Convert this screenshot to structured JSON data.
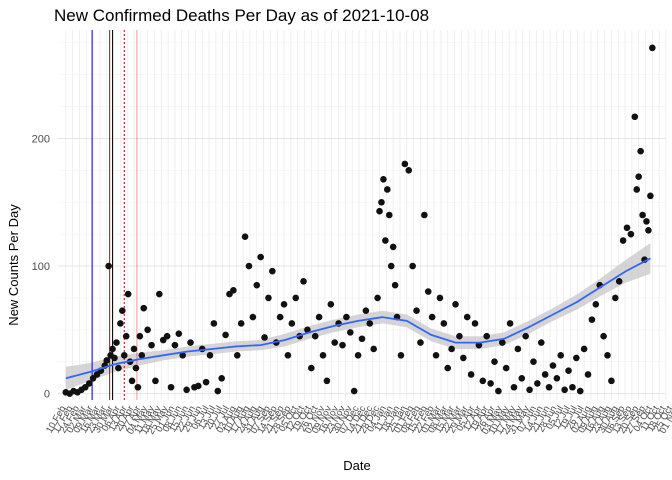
{
  "chart_data": {
    "type": "scatter",
    "title": "New Confirmed Deaths Per Day as of 2021-10-08",
    "xlabel": "Date",
    "ylabel": "New Counts Per Day",
    "ylim": [
      -5,
      285
    ],
    "xlim": [
      -8,
      615
    ],
    "y_ticks": [
      0,
      100,
      200
    ],
    "x_tick_labels": [
      "10 Feb",
      "17 Feb",
      "24 Feb",
      "02 Mar",
      "09 Mar",
      "16 Mar",
      "23 Mar",
      "30 Mar",
      "06 Apr",
      "13 Apr",
      "20 Apr",
      "27 Apr",
      "04 May",
      "11 May",
      "18 May",
      "25 May",
      "01 Jun",
      "08 Jun",
      "15 Jun",
      "22 Jun",
      "29 Jun",
      "06 Jul",
      "13 Jul",
      "20 Jul",
      "27 Jul",
      "03 Aug",
      "10 Aug",
      "17 Aug",
      "24 Aug",
      "31 Aug",
      "07 Sep",
      "14 Sep",
      "21 Sep",
      "28 Sep",
      "05 Oct",
      "12 Oct",
      "19 Oct",
      "26 Oct",
      "02 Nov",
      "09 Nov",
      "16 Nov",
      "23 Nov",
      "30 Nov",
      "07 Dec",
      "14 Dec",
      "21 Dec",
      "28 Dec",
      "04 Jan",
      "11 Jan",
      "18 Jan",
      "25 Jan",
      "01 Feb",
      "08 Feb",
      "15 Feb",
      "22 Feb",
      "01 Mar",
      "08 Mar",
      "15 Mar",
      "22 Mar",
      "29 Mar",
      "05 Apr",
      "12 Apr",
      "19 Apr",
      "26 Apr",
      "03 May",
      "10 May",
      "17 May",
      "24 May",
      "31 May",
      "07 Jun",
      "14 Jun",
      "21 Jun",
      "28 Jun",
      "05 Jul",
      "12 Jul",
      "19 Jul",
      "26 Jul",
      "02 Aug",
      "09 Aug",
      "16 Aug",
      "23 Aug",
      "30 Aug",
      "06 Sep",
      "13 Sep",
      "20 Sep",
      "27 Sep",
      "04 Oct",
      "11 Oct",
      "18 Oct",
      "25 Oct",
      "01 Nov"
    ],
    "vlines": [
      {
        "day": 27,
        "color": "#0000cc",
        "style": "solid"
      },
      {
        "day": 45,
        "color": "#cc0000",
        "style": "solid"
      },
      {
        "day": 48,
        "color": "#000000",
        "style": "solid"
      },
      {
        "day": 60,
        "color": "#cc0000",
        "style": "dotted"
      },
      {
        "day": 73,
        "color": "#cc0000",
        "style": "solid-light"
      }
    ],
    "trend_day": [
      0,
      25,
      50,
      75,
      100,
      125,
      150,
      175,
      200,
      225,
      250,
      275,
      300,
      325,
      350,
      375,
      400,
      425,
      450,
      475,
      500,
      525,
      550,
      575,
      600
    ],
    "trend_value": [
      12,
      17,
      23,
      27,
      30,
      33,
      35,
      37,
      38,
      42,
      48,
      53,
      57,
      60,
      57,
      46,
      40,
      40,
      43,
      52,
      62,
      72,
      84,
      96,
      106
    ],
    "trend_band": [
      9,
      7,
      6,
      5,
      4,
      4,
      4,
      4,
      4,
      5,
      5,
      5,
      5,
      5,
      5,
      5,
      5,
      5,
      5,
      5,
      5,
      6,
      7,
      9,
      12
    ],
    "days": [
      0,
      4,
      8,
      12,
      16,
      20,
      24,
      28,
      32,
      36,
      40,
      42,
      44,
      46,
      48,
      50,
      52,
      54,
      56,
      58,
      60,
      62,
      64,
      66,
      68,
      70,
      72,
      74,
      76,
      78,
      80,
      84,
      88,
      92,
      96,
      100,
      104,
      108,
      112,
      116,
      120,
      124,
      128,
      132,
      136,
      140,
      144,
      148,
      152,
      156,
      160,
      164,
      168,
      172,
      176,
      180,
      184,
      188,
      192,
      196,
      200,
      204,
      208,
      212,
      216,
      220,
      224,
      228,
      232,
      236,
      240,
      244,
      248,
      252,
      256,
      260,
      264,
      268,
      272,
      276,
      280,
      284,
      288,
      292,
      296,
      300,
      304,
      308,
      312,
      316,
      320,
      322,
      324,
      326,
      328,
      330,
      332,
      334,
      336,
      338,
      340,
      344,
      348,
      352,
      356,
      360,
      364,
      368,
      372,
      376,
      380,
      384,
      388,
      392,
      396,
      400,
      404,
      408,
      412,
      416,
      420,
      424,
      428,
      432,
      436,
      440,
      444,
      448,
      452,
      456,
      460,
      464,
      468,
      472,
      476,
      480,
      484,
      488,
      492,
      496,
      500,
      504,
      508,
      512,
      516,
      520,
      524,
      528,
      532,
      536,
      540,
      544,
      548,
      552,
      556,
      560,
      564,
      568,
      572,
      576,
      580,
      584,
      586,
      588,
      590,
      592,
      594,
      596,
      598,
      600,
      602
    ],
    "values": [
      1,
      0,
      2,
      1,
      3,
      5,
      8,
      12,
      15,
      18,
      22,
      26,
      100,
      30,
      35,
      28,
      40,
      20,
      55,
      65,
      30,
      45,
      78,
      25,
      10,
      35,
      20,
      5,
      45,
      30,
      67,
      50,
      38,
      10,
      78,
      42,
      45,
      5,
      38,
      47,
      30,
      3,
      40,
      5,
      6,
      35,
      9,
      30,
      55,
      2,
      12,
      46,
      78,
      81,
      30,
      55,
      123,
      100,
      60,
      85,
      107,
      44,
      75,
      96,
      40,
      60,
      70,
      30,
      55,
      75,
      45,
      88,
      50,
      20,
      45,
      60,
      30,
      10,
      70,
      40,
      55,
      38,
      60,
      48,
      2,
      30,
      43,
      65,
      55,
      35,
      75,
      143,
      150,
      168,
      120,
      160,
      140,
      100,
      115,
      85,
      60,
      30,
      180,
      175,
      100,
      65,
      40,
      140,
      80,
      60,
      30,
      75,
      55,
      20,
      35,
      70,
      45,
      28,
      60,
      15,
      55,
      38,
      10,
      45,
      8,
      25,
      2,
      40,
      20,
      55,
      5,
      35,
      12,
      45,
      3,
      25,
      8,
      40,
      15,
      5,
      22,
      12,
      30,
      3,
      18,
      5,
      28,
      2,
      35,
      15,
      58,
      70,
      85,
      45,
      30,
      10,
      75,
      88,
      120,
      130,
      125,
      217,
      160,
      170,
      190,
      140,
      105,
      135,
      128,
      155,
      271
    ]
  }
}
